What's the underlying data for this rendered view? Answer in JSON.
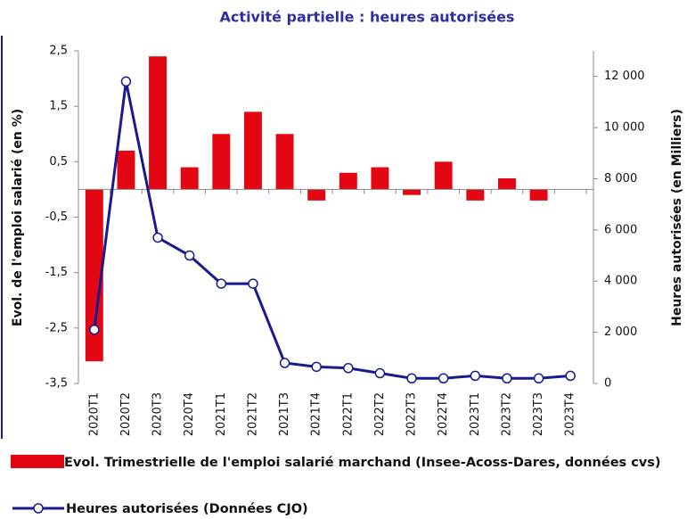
{
  "chart_data": {
    "type": "bar_line",
    "title": "Activité partielle : heures autorisées",
    "y_label": "Evol. de l'emploi salarié (en %)",
    "y2_label": "Heures autorisées (en Milliers)",
    "categories": [
      "2020T1",
      "2020T2",
      "2020T3",
      "2020T4",
      "2021T1",
      "2021T2",
      "2021T3",
      "2021T4",
      "2022T1",
      "2022T2",
      "2022T3",
      "2022T4",
      "2023T1",
      "2023T2",
      "2023T3",
      "2023T4"
    ],
    "series": [
      {
        "name": "Evol. Trimestrielle de l'emploi salarié marchand (Insee-Acoss-Dares, données cvs)",
        "type": "bar",
        "color": "#e30613",
        "values": [
          -3.1,
          0.7,
          2.4,
          0.4,
          1.0,
          1.4,
          1.0,
          -0.2,
          0.3,
          0.4,
          -0.1,
          0.5,
          -0.2,
          0.2,
          -0.2,
          0
        ]
      },
      {
        "name": "Heures autorisées (Données CJO)",
        "type": "line",
        "axis": "y2",
        "color": "#1a1a8c",
        "values": [
          2100,
          11800,
          5700,
          5000,
          3900,
          3900,
          800,
          650,
          600,
          400,
          200,
          200,
          300,
          200,
          200,
          300
        ]
      }
    ],
    "ylim": [
      -3.5,
      2.5
    ],
    "yticks": [
      {
        "value": -3.5,
        "label": "-3,5"
      },
      {
        "value": -2.5,
        "label": "-2,5"
      },
      {
        "value": -1.5,
        "label": "-1,5"
      },
      {
        "value": -0.5,
        "label": "-0,5"
      },
      {
        "value": 0.5,
        "label": "0,5"
      },
      {
        "value": 1.5,
        "label": "1,5"
      },
      {
        "value": 2.5,
        "label": "2,5"
      }
    ],
    "y2lim": [
      0,
      13000
    ],
    "y2ticks": [
      0,
      {
        "value": 2000,
        "label": "2 000"
      },
      {
        "value": 4000,
        "label": "4 000"
      },
      {
        "value": 6000,
        "label": "6 000"
      },
      {
        "value": 8000,
        "label": "8 000"
      },
      {
        "value": 10000,
        "label": "10 000"
      },
      {
        "value": 12000,
        "label": "12 000"
      }
    ]
  }
}
